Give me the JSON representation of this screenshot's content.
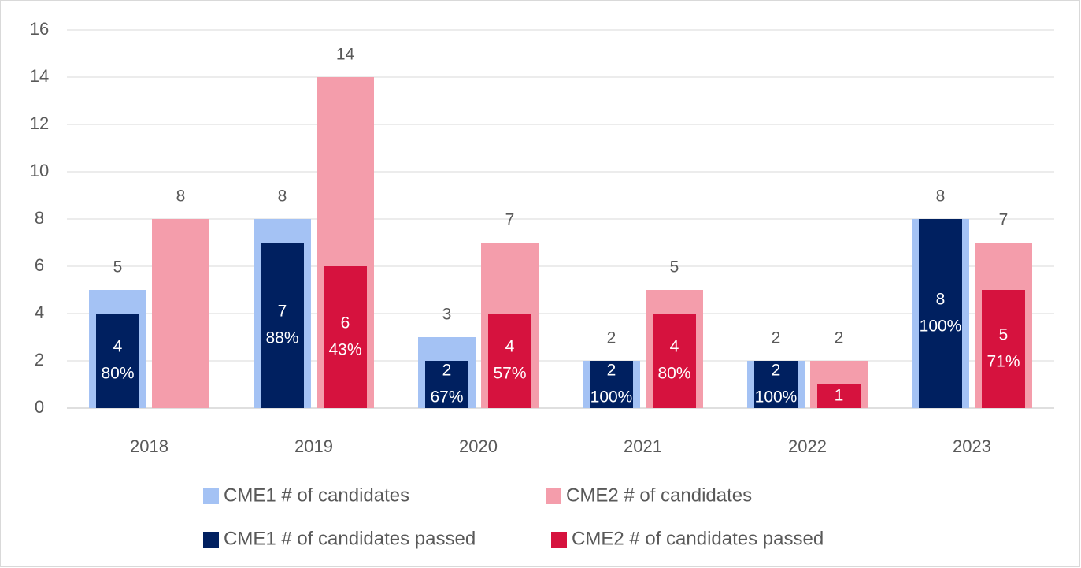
{
  "chart_data": {
    "type": "bar",
    "categories": [
      "2018",
      "2019",
      "2020",
      "2021",
      "2022",
      "2023"
    ],
    "series": [
      {
        "name": "CME1 # of candidates",
        "color": "#a4c2f4",
        "values": [
          5,
          8,
          3,
          2,
          2,
          8
        ]
      },
      {
        "name": "CME2 # of candidates",
        "color": "#f49dab",
        "values": [
          8,
          14,
          7,
          5,
          2,
          7
        ]
      },
      {
        "name": "CME1 # of candidates passed",
        "color": "#002060",
        "values": [
          4,
          7,
          2,
          2,
          2,
          8
        ],
        "pass_rates": [
          {
            "value": 80,
            "label": "80%"
          },
          {
            "value": 88,
            "label": "88%"
          },
          {
            "value": 67,
            "label": "67%"
          },
          {
            "value": 100,
            "label": "100%"
          },
          {
            "value": 100,
            "label": "100%"
          },
          {
            "value": 100,
            "label": "100%"
          }
        ]
      },
      {
        "name": "CME2 # of candidates passed",
        "color": "#d6123e",
        "values": [
          null,
          6,
          4,
          4,
          1,
          5
        ],
        "pass_rates": [
          null,
          {
            "value": 43,
            "label": "43%"
          },
          {
            "value": 57,
            "label": "57%"
          },
          {
            "value": 80,
            "label": "80%"
          },
          null,
          {
            "value": 71,
            "label": "71%"
          }
        ]
      }
    ],
    "ylim": [
      0,
      16
    ],
    "yticks": [
      0,
      2,
      4,
      6,
      8,
      10,
      12,
      14,
      16
    ],
    "grid": true,
    "legend": "bottom"
  }
}
